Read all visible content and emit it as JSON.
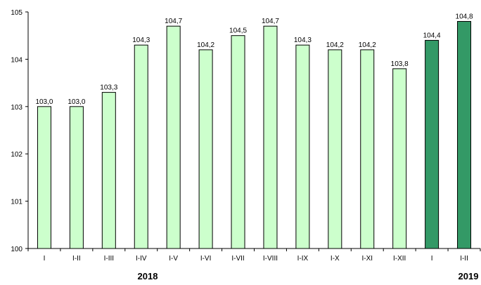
{
  "chart_data": {
    "type": "bar",
    "categories": [
      "I",
      "I-II",
      "I-III",
      "I-IV",
      "I-V",
      "I-VI",
      "I-VII",
      "I-VIII",
      "I-IX",
      "I-X",
      "I-XI",
      "I-XII",
      "I",
      "I-II"
    ],
    "values": [
      103.0,
      103.0,
      103.3,
      104.3,
      104.7,
      104.2,
      104.5,
      104.7,
      104.3,
      104.2,
      104.2,
      103.8,
      104.4,
      104.8
    ],
    "data_labels": [
      "103,0",
      "103,0",
      "103,3",
      "104,3",
      "104,7",
      "104,2",
      "104,5",
      "104,7",
      "104,3",
      "104,2",
      "104,2",
      "103,8",
      "104,4",
      "104,8"
    ],
    "year_of_bar": [
      "2018",
      "2018",
      "2018",
      "2018",
      "2018",
      "2018",
      "2018",
      "2018",
      "2018",
      "2018",
      "2018",
      "2018",
      "2019",
      "2019"
    ],
    "year_labels": [
      "2018",
      "2019"
    ],
    "y_ticks": [
      100,
      101,
      102,
      103,
      104,
      105
    ],
    "ylim": [
      100,
      105
    ],
    "title": "",
    "xlabel": "",
    "ylabel": "",
    "grid": false,
    "colors": {
      "2018": "#ccffcc",
      "2019": "#339966",
      "outline": "#000000"
    }
  }
}
